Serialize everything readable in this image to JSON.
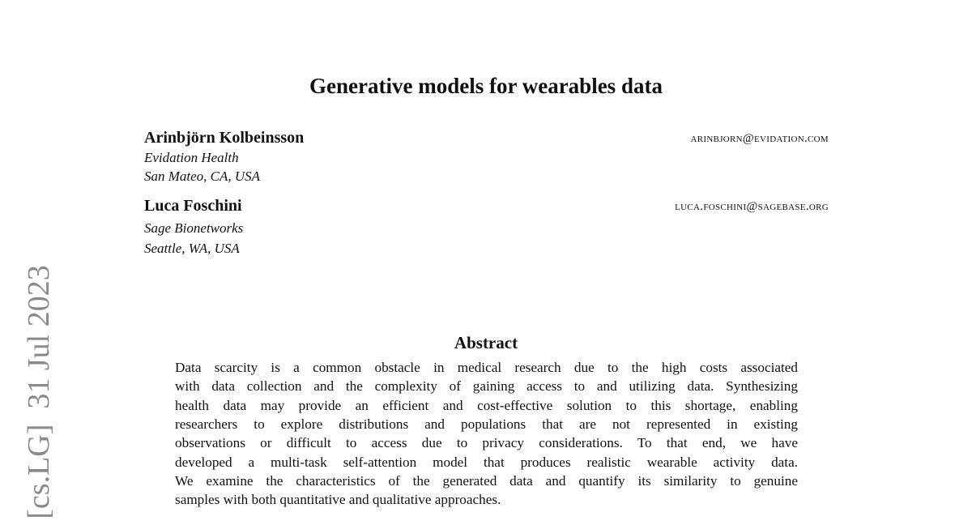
{
  "arxiv_stamp": "[cs.LG]  31 Jul 2023",
  "title": "Generative models for wearables data",
  "authors": [
    {
      "name": "Arinbjörn Kolbeinsson",
      "email": "arinbjorn@evidation.com",
      "affiliation": "Evidation Health",
      "location": "San Mateo, CA, USA"
    },
    {
      "name": "Luca Foschini",
      "email": "luca.foschini@sagebase.org",
      "affiliation": "Sage Bionetworks",
      "location": "Seattle, WA, USA"
    }
  ],
  "abstract": {
    "heading": "Abstract",
    "lines": [
      "Data scarcity is a common obstacle in medical research due to the high costs associated",
      "with data collection and the complexity of gaining access to and utilizing data. Synthesizing",
      "health data may provide an efficient and cost-effective solution to this shortage, enabling",
      "researchers to explore distributions and populations that are not represented in existing",
      "observations or difficult to access due to privacy considerations.  To that end, we have",
      "developed a multi-task self-attention model that produces realistic wearable activity data.",
      "We examine the characteristics of the generated data and quantify its similarity to genuine",
      "samples with both quantitative and qualitative approaches."
    ]
  }
}
